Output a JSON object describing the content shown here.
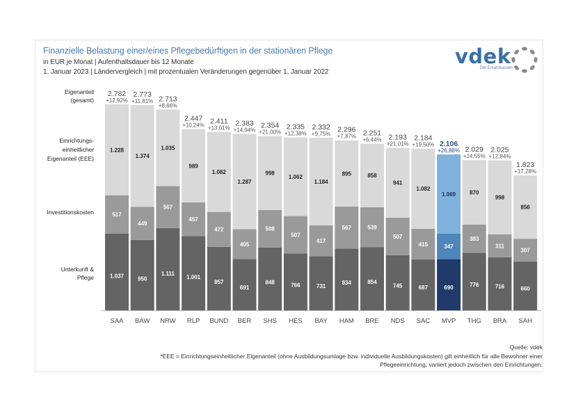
{
  "header": {
    "title": "Finanzielle Belastung einer/eines Pflegebedürftigen in der stationären Pflege",
    "subtitle1": "in EUR je Monat | Aufenthaltsdauer bis 12 Monate",
    "subtitle2": "1. Januar 2023 | Ländervergleich | mit prozentualen Veränderungen gegenüber 1. Januar 2022"
  },
  "logo": {
    "name": "vdek",
    "tagline": "Die Ersatzkassen",
    "icon": "dotted-circle-icon"
  },
  "row_labels": {
    "total_line1": "Eigenanteil",
    "total_line2": "(gesamt)",
    "eee_line1": "Einrichtungs-",
    "eee_line2": "einheitlicher",
    "eee_line3": "Eigenanteil (EEE)",
    "invest": "Investitionskosten",
    "uup_line1": "Unterkunft &",
    "uup_line2": "Pflege"
  },
  "footer": {
    "source": "Quelle: vdek",
    "note_line1": "*EEE = Einrichtungseinheitlicher Eigenanteil (ohne Ausbildungsumlage bzw. individuelle Ausbildungskosten) gilt einheitlich für alle Bewohner einer",
    "note_line2": "Pflegeeinrichtung, variiert jedoch zwischen den Einrichtungen."
  },
  "colors": {
    "eee": "#d9d9d9",
    "invest": "#9a9a9a",
    "uup": "#646464",
    "highlight_eee": "#7fb2dc",
    "highlight_invest": "#4f86bb",
    "highlight_uup": "#1f3a6b",
    "highlight_text": "#2a4e80",
    "title": "#4a7fb0"
  },
  "chart_data": {
    "type": "bar",
    "stacked": true,
    "title": "Finanzielle Belastung einer/eines Pflegebedürftigen in der stationären Pflege",
    "xlabel": "",
    "ylabel": "EUR je Monat",
    "highlight": "MVP",
    "categories": [
      "SAA",
      "BAW",
      "NRW",
      "RLP",
      "BUND",
      "BER",
      "SHS",
      "HES",
      "BAY",
      "HAM",
      "BRE",
      "NDS",
      "SAC",
      "MVP",
      "THG",
      "BRA",
      "SAH"
    ],
    "series": [
      {
        "name": "Unterkunft & Pflege",
        "values": [
          1037,
          950,
          1111,
          1001,
          857,
          691,
          848,
          766,
          731,
          834,
          854,
          745,
          687,
          690,
          776,
          716,
          660
        ]
      },
      {
        "name": "Investitionskosten",
        "values": [
          517,
          449,
          567,
          457,
          472,
          405,
          508,
          507,
          417,
          567,
          539,
          507,
          415,
          347,
          383,
          311,
          307
        ]
      },
      {
        "name": "Einrichtungseinheitlicher Eigenanteil (EEE)",
        "values": [
          1228,
          1374,
          1035,
          989,
          1082,
          1287,
          998,
          1062,
          1184,
          895,
          858,
          941,
          1082,
          1069,
          870,
          998,
          856
        ]
      }
    ],
    "totals": [
      "2.782",
      "2.773",
      "2.713",
      "2.447",
      "2.411",
      "2.383",
      "2.354",
      "2.335",
      "2.332",
      "2.296",
      "2.251",
      "2.193",
      "2.184",
      "2.106",
      "2.029",
      "2.025",
      "1.823"
    ],
    "total_values": [
      2782,
      2773,
      2713,
      2447,
      2411,
      2383,
      2354,
      2335,
      2332,
      2296,
      2251,
      2193,
      2184,
      2106,
      2029,
      2025,
      1823
    ],
    "changes": [
      "+12,92%",
      "+11,81%",
      "+8,66%",
      "+10,24%",
      "+13,01%",
      "+14,94%",
      "+21,00%",
      "+12,38%",
      "+9,75%",
      "+7,87%",
      "+6,44%",
      "+21,01%",
      "+19,50%",
      "+26,88%",
      "+14,55%",
      "+12,84%",
      "+17,28%"
    ],
    "ylim": [
      0,
      2782
    ],
    "grid": false,
    "legend": "left-row-labels"
  }
}
